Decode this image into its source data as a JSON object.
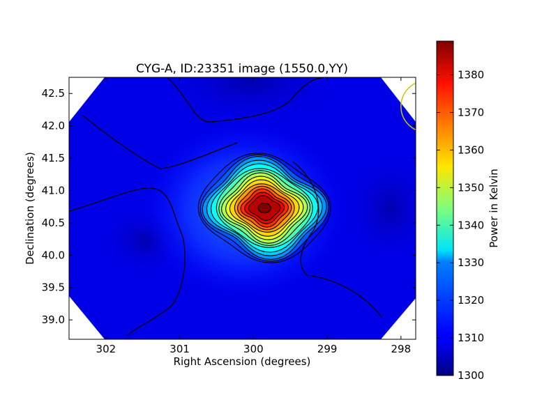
{
  "chart_data": {
    "type": "heatmap",
    "title": "CYG-A, ID:23351 image (1550.0,YY)",
    "xlabel": "Right Ascension (degrees)",
    "ylabel": "Declination (degrees)",
    "colorbar_label": "Power in Kelvin",
    "colormap": "jet",
    "x_axis_inverted": true,
    "xlim": [
      302.5,
      297.8
    ],
    "ylim": [
      38.7,
      42.75
    ],
    "x_ticks": [
      302,
      301,
      300,
      299,
      298
    ],
    "x_tick_labels": [
      "302",
      "301",
      "300",
      "299",
      "298"
    ],
    "y_ticks": [
      39.0,
      39.5,
      40.0,
      40.5,
      41.0,
      41.5,
      42.0,
      42.5
    ],
    "y_tick_labels": [
      "39.0",
      "39.5",
      "40.0",
      "40.5",
      "41.0",
      "41.5",
      "42.0",
      "42.5"
    ],
    "colorbar_range": [
      1300,
      1389
    ],
    "colorbar_ticks": [
      1300,
      1310,
      1320,
      1330,
      1340,
      1350,
      1360,
      1370,
      1380
    ],
    "colorbar_tick_labels": [
      "1300",
      "1310",
      "1320",
      "1330",
      "1340",
      "1350",
      "1360",
      "1370",
      "1380"
    ],
    "background_level": 1309,
    "peak": {
      "ra": 299.85,
      "dec": 40.73,
      "value": 1389
    },
    "beam_circle": {
      "ra": 297.65,
      "dec": 42.3,
      "radius_deg": 0.35,
      "color": "#c8c800"
    },
    "contour_color": "#000000"
  }
}
